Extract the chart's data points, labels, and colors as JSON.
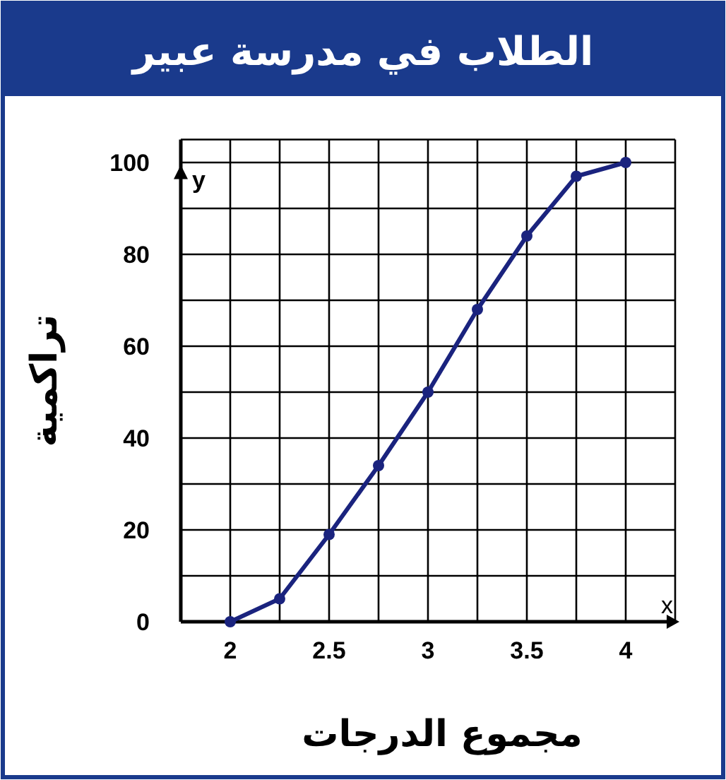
{
  "chart_data": {
    "type": "line",
    "title": "الطلاب في مدرسة عبير",
    "xlabel": "مجموع الدرجات",
    "ylabel": "تراكمية",
    "x": [
      2,
      2.25,
      2.5,
      2.75,
      3,
      3.25,
      3.5,
      3.75,
      4
    ],
    "series": [
      {
        "color": "#1a237e",
        "values": [
          0,
          5,
          19,
          34,
          50,
          68,
          84,
          97,
          100
        ]
      }
    ],
    "xlim": [
      1.75,
      4.25
    ],
    "ylim": [
      0,
      105
    ],
    "xticks": [
      2,
      {
        "value": 2.25,
        "label": null
      },
      2.5,
      {
        "value": 2.75,
        "label": null
      },
      3,
      {
        "value": 3.25,
        "label": null
      },
      3.5,
      {
        "value": 3.75,
        "label": null
      },
      4
    ],
    "yticks": [
      0,
      {
        "value": 10,
        "label": null
      },
      20,
      {
        "value": 30,
        "label": null
      },
      40,
      {
        "value": 50,
        "label": null
      },
      60,
      {
        "value": 70,
        "label": null
      },
      80,
      {
        "value": 90,
        "label": null
      },
      100
    ],
    "grid": true,
    "marker": "circle",
    "line_style": "solid",
    "annotations": [
      "x",
      "y"
    ]
  }
}
